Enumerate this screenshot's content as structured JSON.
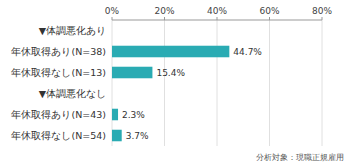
{
  "chart_data": {
    "type": "bar",
    "orientation": "horizontal",
    "categories": [
      "年休取得なし(N=54)",
      "年休取得あり(N=43)",
      "▼体調悪化なし",
      "年休取得なし(N=13)",
      "年休取得あり(N=38)",
      "▼体調悪化あり"
    ],
    "values": [
      3.7,
      2.3,
      null,
      15.4,
      44.7,
      null
    ],
    "value_labels": [
      "3.7%",
      "2.3%",
      null,
      "15.4%",
      "44.7%",
      null
    ],
    "data_labels": true,
    "color": "#2aabb3",
    "xlim": [
      0,
      80
    ],
    "xticks": [
      {
        "value": 0,
        "label": "0%"
      },
      {
        "value": 20,
        "label": "20%"
      },
      {
        "value": 40,
        "label": "40%"
      },
      {
        "value": 60,
        "label": "60%"
      },
      {
        "value": 80,
        "label": "80%"
      }
    ],
    "grid": true,
    "annotations": [
      "分析対象：現職正規雇用"
    ]
  }
}
